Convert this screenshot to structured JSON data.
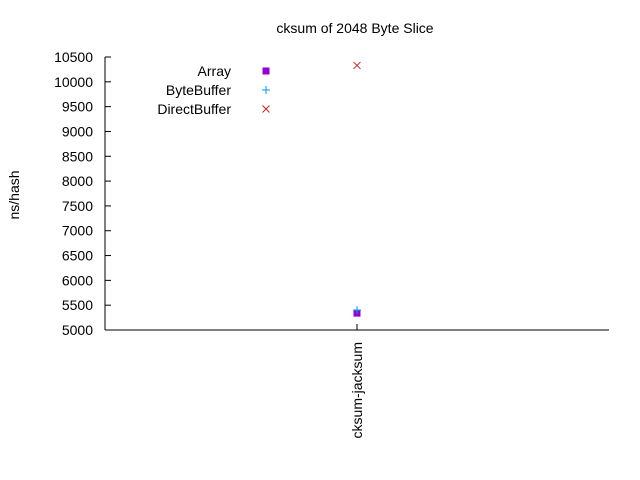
{
  "chart_data": {
    "type": "scatter",
    "title": "cksum of 2048 Byte Slice",
    "xlabel": "",
    "ylabel": "ns/hash",
    "ylim": [
      5000,
      10500
    ],
    "yticks": [
      5000,
      5500,
      6000,
      6500,
      7000,
      7500,
      8000,
      8500,
      9000,
      9500,
      10000,
      10500
    ],
    "categories": [
      "cksum-jacksum"
    ],
    "grid": false,
    "legend_position": "top-left",
    "series": [
      {
        "name": "Array",
        "marker": "filled-square",
        "color": "#9400d3",
        "values": [
          5340
        ]
      },
      {
        "name": "ByteBuffer",
        "marker": "plus",
        "color": "#009ee8",
        "values": [
          5400
        ]
      },
      {
        "name": "DirectBuffer",
        "marker": "cross",
        "color": "#cc2222",
        "values": [
          10330
        ]
      }
    ]
  }
}
